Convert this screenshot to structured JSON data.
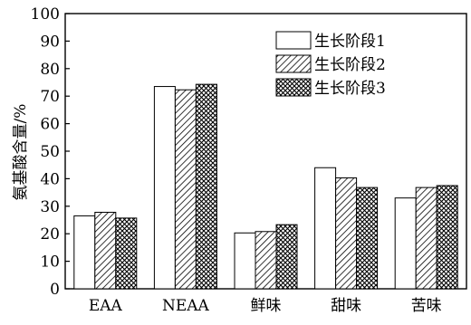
{
  "chart_data": {
    "type": "bar",
    "title": "",
    "xlabel": "",
    "ylabel": "氨基酸含量/%",
    "ylim": [
      0,
      100
    ],
    "yticks": [
      0,
      10,
      20,
      30,
      40,
      50,
      60,
      70,
      80,
      90,
      100
    ],
    "categories": [
      "EAA",
      "NEAA",
      "鲜味",
      "甜味",
      "苦味"
    ],
    "series": [
      {
        "name": "生长阶段1",
        "pattern": "solid-white",
        "values": [
          26.5,
          73.5,
          20.3,
          44.0,
          33.0
        ]
      },
      {
        "name": "生长阶段2",
        "pattern": "diagonal-hatch",
        "values": [
          27.8,
          72.3,
          20.8,
          40.3,
          36.8
        ]
      },
      {
        "name": "生长阶段3",
        "pattern": "cross-hatch",
        "values": [
          25.7,
          74.3,
          23.3,
          36.8,
          37.5
        ]
      }
    ],
    "grid": false,
    "legend_position": "top-right"
  }
}
